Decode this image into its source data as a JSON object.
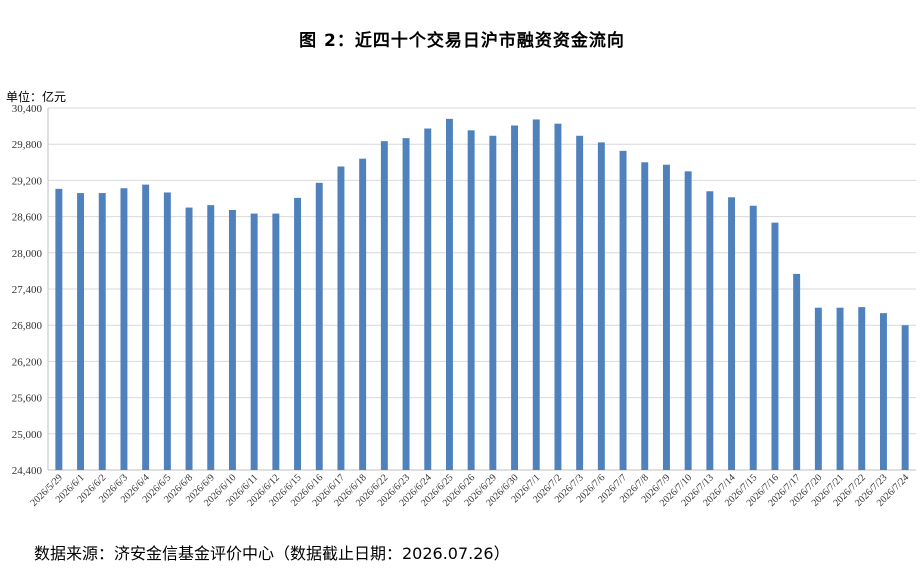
{
  "title": "图 2：近四十个交易日沪市融资资金流向",
  "unit_label": "单位：亿元",
  "source": "数据来源：济安金信基金评价中心（数据截止日期：2026.07.26）",
  "colors": {
    "bar": "#4f81bd",
    "grid": "#d9d9d9",
    "axis": "#bfbfbf"
  },
  "chart_data": {
    "type": "bar",
    "title": "图 2：近四十个交易日沪市融资资金流向",
    "xlabel": "",
    "ylabel": "单位：亿元",
    "ylim": [
      24400,
      30400
    ],
    "yticks": [
      24400,
      25000,
      25600,
      26200,
      26800,
      27400,
      28000,
      28600,
      29200,
      29800,
      30400
    ],
    "ytick_labels": [
      "24,400",
      "25,000",
      "25,600",
      "26,200",
      "26,800",
      "27,400",
      "28,000",
      "28,600",
      "29,200",
      "29,800",
      "30,400"
    ],
    "grid": true,
    "categories": [
      "2026/5/29",
      "2026/6/1",
      "2026/6/2",
      "2026/6/3",
      "2026/6/4",
      "2026/6/5",
      "2026/6/8",
      "2026/6/9",
      "2026/6/10",
      "2026/6/11",
      "2026/6/12",
      "2026/6/15",
      "2026/6/16",
      "2026/6/17",
      "2026/6/18",
      "2026/6/22",
      "2026/6/23",
      "2026/6/24",
      "2026/6/25",
      "2026/6/26",
      "2026/6/29",
      "2026/6/30",
      "2026/7/1",
      "2026/7/2",
      "2026/7/3",
      "2026/7/6",
      "2026/7/7",
      "2026/7/8",
      "2026/7/9",
      "2026/7/10",
      "2026/7/13",
      "2026/7/14",
      "2026/7/15",
      "2026/7/16",
      "2026/7/17",
      "2026/7/20",
      "2026/7/21",
      "2026/7/22",
      "2026/7/23",
      "2026/7/24"
    ],
    "values": [
      29060,
      28990,
      28990,
      29070,
      29130,
      29000,
      28750,
      28790,
      28710,
      28650,
      28650,
      28910,
      29160,
      29430,
      29560,
      29850,
      29900,
      30060,
      30220,
      30030,
      29940,
      30110,
      30210,
      30140,
      29940,
      29830,
      29690,
      29500,
      29460,
      29350,
      29020,
      28920,
      28780,
      28500,
      27650,
      27090,
      27090,
      27100,
      27000,
      26800
    ]
  }
}
